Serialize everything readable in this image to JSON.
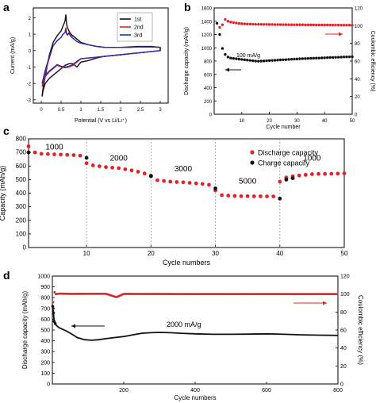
{
  "panels": {
    "a": {
      "letter": "a"
    },
    "b": {
      "letter": "b"
    },
    "c": {
      "letter": "c"
    },
    "d": {
      "letter": "d"
    }
  },
  "colors": {
    "black": "#111111",
    "red": "#e0252a",
    "blue": "#2b2fa8",
    "grid": "#9a9a9a"
  },
  "chart_data": [
    {
      "id": "a",
      "type": "line",
      "xlabel": "Potential (V vs Li/Li⁺)",
      "ylabel": "Current (mA/g)",
      "xlim": [
        -0.2,
        3.2
      ],
      "ylim": [
        -3.2,
        2.6
      ],
      "xticks": [
        0.0,
        0.5,
        1.0,
        1.5,
        2.0,
        2.5,
        3.0
      ],
      "yticks": [
        -3,
        -2,
        -1,
        0,
        1,
        2
      ],
      "legend": {
        "position": "top-right",
        "entries": [
          "1st",
          "2nd",
          "3rd"
        ]
      },
      "series": [
        {
          "name": "1st",
          "color": "#111111",
          "x": [
            0.02,
            0.05,
            0.1,
            0.2,
            0.3,
            0.4,
            0.5,
            0.55,
            0.6,
            0.62,
            0.64,
            0.66,
            0.7,
            0.75,
            0.8,
            0.9,
            1.0,
            1.2,
            1.4,
            1.6,
            1.8,
            2.0,
            2.2,
            2.4,
            2.6,
            2.8,
            3.0,
            3.0,
            2.8,
            2.6,
            2.4,
            2.2,
            2.0,
            1.8,
            1.6,
            1.4,
            1.2,
            1.0,
            0.9,
            0.8,
            0.7,
            0.6,
            0.5,
            0.4,
            0.3,
            0.2,
            0.1,
            0.05,
            0.02
          ],
          "y": [
            -2.8,
            -2.2,
            -1.6,
            -0.3,
            0.5,
            0.9,
            1.2,
            1.5,
            1.8,
            2.2,
            1.6,
            1.4,
            1.2,
            1.0,
            0.9,
            0.7,
            0.5,
            0.35,
            0.25,
            0.2,
            0.2,
            0.2,
            0.22,
            0.25,
            0.25,
            0.25,
            0.2,
            0.0,
            -0.05,
            -0.1,
            -0.15,
            -0.2,
            -0.25,
            -0.3,
            -0.35,
            -0.45,
            -0.6,
            -0.7,
            -1.0,
            -0.8,
            -0.8,
            -0.9,
            -1.1,
            -1.3,
            -1.5,
            -1.7,
            -2.0,
            -2.4,
            -2.8
          ]
        },
        {
          "name": "2nd",
          "color": "#e0252a",
          "x": [
            0.02,
            0.05,
            0.1,
            0.2,
            0.3,
            0.4,
            0.5,
            0.55,
            0.6,
            0.62,
            0.64,
            0.66,
            0.7,
            0.75,
            0.8,
            0.9,
            1.0,
            1.2,
            1.4,
            1.6,
            1.8,
            2.0,
            2.2,
            2.4,
            2.6,
            2.8,
            3.0,
            3.0,
            2.8,
            2.6,
            2.4,
            2.2,
            2.0,
            1.8,
            1.6,
            1.4,
            1.2,
            1.0,
            0.9,
            0.8,
            0.7,
            0.6,
            0.5,
            0.4,
            0.3,
            0.2,
            0.1,
            0.05,
            0.02
          ],
          "y": [
            -2.2,
            -1.8,
            -1.3,
            -0.5,
            0.3,
            0.6,
            0.8,
            1.0,
            1.1,
            1.4,
            1.05,
            0.95,
            1.1,
            0.9,
            0.75,
            0.55,
            0.45,
            0.35,
            0.25,
            0.2,
            0.2,
            0.2,
            0.2,
            0.22,
            0.22,
            0.22,
            0.2,
            0.0,
            -0.05,
            -0.1,
            -0.15,
            -0.2,
            -0.25,
            -0.3,
            -0.35,
            -0.4,
            -0.45,
            -0.5,
            -0.7,
            -0.9,
            -1.0,
            -1.05,
            -1.0,
            -0.9,
            -1.1,
            -1.3,
            -1.6,
            -1.9,
            -2.2
          ]
        },
        {
          "name": "3rd",
          "color": "#2b2fa8",
          "x": [
            0.02,
            0.05,
            0.1,
            0.2,
            0.3,
            0.4,
            0.5,
            0.55,
            0.6,
            0.62,
            0.64,
            0.66,
            0.7,
            0.75,
            0.8,
            0.9,
            1.0,
            1.2,
            1.4,
            1.6,
            1.8,
            2.0,
            2.2,
            2.4,
            2.6,
            2.8,
            3.0,
            3.0,
            2.8,
            2.6,
            2.4,
            2.2,
            2.0,
            1.8,
            1.6,
            1.4,
            1.2,
            1.0,
            0.9,
            0.8,
            0.7,
            0.6,
            0.5,
            0.4,
            0.3,
            0.2,
            0.1,
            0.05,
            0.02
          ],
          "y": [
            -2.0,
            -1.7,
            -1.2,
            -0.4,
            0.3,
            0.6,
            0.8,
            1.0,
            1.1,
            1.3,
            1.0,
            0.95,
            1.05,
            0.85,
            0.75,
            0.55,
            0.45,
            0.35,
            0.25,
            0.2,
            0.2,
            0.2,
            0.2,
            0.22,
            0.22,
            0.22,
            0.2,
            0.0,
            -0.05,
            -0.1,
            -0.15,
            -0.2,
            -0.25,
            -0.3,
            -0.35,
            -0.4,
            -0.45,
            -0.5,
            -0.65,
            -0.85,
            -0.95,
            -1.0,
            -0.95,
            -0.85,
            -1.05,
            -1.25,
            -1.5,
            -1.8,
            -2.0
          ]
        }
      ]
    },
    {
      "id": "b",
      "type": "scatter",
      "xlabel": "Cycle number",
      "ylabel": "Discharge capacity (mAh/g)",
      "ylabel_right": "Coulombic efficiency (%)",
      "xlim": [
        0,
        50
      ],
      "ylim": [
        0,
        1600
      ],
      "ylim_right": [
        0,
        120
      ],
      "xticks": [
        10,
        20,
        30,
        40,
        50
      ],
      "yticks": [
        0,
        200,
        400,
        600,
        800,
        1000,
        1200,
        1400,
        1600
      ],
      "yticks_right": [
        0,
        20,
        40,
        60,
        80,
        100,
        120
      ],
      "annotation": "100 mA/g",
      "series": [
        {
          "axis": "left",
          "color": "#111111",
          "x": [
            1,
            2,
            3,
            4,
            5,
            6,
            7,
            8,
            9,
            10,
            11,
            12,
            13,
            14,
            15,
            16,
            17,
            18,
            19,
            20,
            21,
            22,
            23,
            24,
            25,
            26,
            27,
            28,
            29,
            30,
            31,
            32,
            33,
            34,
            35,
            36,
            37,
            38,
            39,
            40,
            41,
            42,
            43,
            44,
            45,
            46,
            47,
            48,
            49,
            50
          ],
          "y": [
            1370,
            1200,
            990,
            900,
            860,
            845,
            840,
            835,
            830,
            825,
            820,
            815,
            810,
            805,
            800,
            798,
            800,
            802,
            805,
            808,
            810,
            812,
            815,
            818,
            820,
            822,
            825,
            828,
            830,
            832,
            835,
            837,
            838,
            840,
            842,
            844,
            845,
            846,
            848,
            850,
            852,
            854,
            855,
            856,
            858,
            860,
            862,
            863,
            864,
            865
          ]
        },
        {
          "axis": "right",
          "color": "#e0252a",
          "x": [
            2,
            3,
            4,
            5,
            6,
            7,
            8,
            9,
            10,
            11,
            12,
            13,
            14,
            15,
            16,
            17,
            18,
            19,
            20,
            21,
            22,
            23,
            24,
            25,
            26,
            27,
            28,
            29,
            30,
            31,
            32,
            33,
            34,
            35,
            36,
            37,
            38,
            39,
            40,
            41,
            42,
            43,
            44,
            45,
            46,
            47,
            48,
            49,
            50
          ],
          "y": [
            98,
            101,
            107,
            105,
            104,
            103.5,
            103,
            102.5,
            102.2,
            102,
            101.8,
            101.8,
            101.6,
            101.5,
            101.5,
            101.5,
            101.4,
            101.4,
            101.3,
            101.3,
            101.2,
            101.2,
            101.2,
            101.1,
            101.1,
            101,
            101,
            101,
            101,
            101,
            101,
            100.9,
            100.9,
            100.9,
            100.9,
            100.8,
            100.8,
            100.8,
            100.8,
            100.8,
            100.7,
            100.7,
            100.7,
            100.7,
            100.6,
            100.6,
            100.6,
            100.6,
            100.6
          ]
        }
      ]
    },
    {
      "id": "c",
      "type": "scatter",
      "xlabel": "Cycle numbers",
      "ylabel": "Capacity (mAh/g)",
      "xlim": [
        1,
        50
      ],
      "ylim": [
        0,
        800
      ],
      "xticks": [
        10,
        20,
        30,
        40,
        50
      ],
      "yticks": [
        0,
        100,
        200,
        300,
        400,
        500,
        600,
        700,
        800
      ],
      "legend": {
        "position": "top-right",
        "entries": [
          "Discharge capacity",
          "Charge capacity"
        ]
      },
      "annotations": [
        {
          "text": "1000",
          "x": 5,
          "y": 720
        },
        {
          "text": "2000",
          "x": 15,
          "y": 640
        },
        {
          "text": "3000",
          "x": 25,
          "y": 560
        },
        {
          "text": "5000",
          "x": 35,
          "y": 470
        },
        {
          "text": "1000",
          "x": 45,
          "y": 640
        }
      ],
      "dividers": [
        10,
        20,
        30,
        40
      ],
      "series": [
        {
          "name": "Discharge capacity",
          "color": "#e0252a",
          "x": [
            1,
            2,
            3,
            4,
            5,
            6,
            7,
            8,
            9,
            10,
            11,
            12,
            13,
            14,
            15,
            16,
            17,
            18,
            19,
            20,
            21,
            22,
            23,
            24,
            25,
            26,
            27,
            28,
            29,
            30,
            31,
            32,
            33,
            34,
            35,
            36,
            37,
            38,
            39,
            40,
            41,
            42,
            43,
            44,
            45,
            46,
            47,
            48,
            49,
            50
          ],
          "y": [
            745,
            700,
            690,
            688,
            686,
            684,
            682,
            680,
            676,
            620,
            605,
            598,
            592,
            588,
            584,
            576,
            568,
            558,
            545,
            530,
            495,
            490,
            485,
            482,
            480,
            476,
            472,
            468,
            462,
            420,
            385,
            382,
            380,
            378,
            378,
            377,
            377,
            376,
            376,
            485,
            515,
            525,
            530,
            535,
            540,
            542,
            542,
            543,
            544,
            546
          ]
        },
        {
          "name": "Charge capacity",
          "color": "#111111",
          "x": [
            1,
            10,
            20,
            30,
            40,
            41,
            42
          ],
          "y": [
            700,
            660,
            525,
            435,
            360,
            500,
            510
          ]
        }
      ]
    },
    {
      "id": "d",
      "type": "scatter",
      "xlabel": "Cycle numbers",
      "ylabel": "Discharge capacity (mAh/g)",
      "ylabel_right": "Coulombic efficiency (%)",
      "xlim": [
        0,
        800
      ],
      "ylim": [
        0,
        1000
      ],
      "ylim_right": [
        0,
        120
      ],
      "xticks": [
        200,
        400,
        600,
        800
      ],
      "yticks": [
        0,
        100,
        200,
        300,
        400,
        500,
        600,
        700,
        800,
        900,
        1000
      ],
      "yticks_right": [
        0,
        20,
        40,
        60,
        80,
        100,
        120
      ],
      "annotation": "2000 mA/g",
      "series": [
        {
          "axis": "left",
          "color": "#111111",
          "x": [
            1,
            3,
            5,
            8,
            12,
            20,
            30,
            40,
            55,
            70,
            90,
            110,
            130,
            150,
            175,
            200,
            225,
            250,
            275,
            300,
            330,
            360,
            400,
            450,
            500,
            550,
            600,
            650,
            700,
            750,
            800
          ],
          "y": [
            720,
            660,
            580,
            560,
            540,
            520,
            505,
            490,
            460,
            430,
            410,
            405,
            410,
            420,
            430,
            440,
            455,
            470,
            475,
            478,
            475,
            470,
            465,
            460,
            460,
            462,
            465,
            460,
            455,
            452,
            450
          ]
        },
        {
          "axis": "right",
          "color": "#e0252a",
          "x": [
            2,
            4,
            6,
            10,
            20,
            40,
            60,
            100,
            150,
            180,
            200,
            250,
            300,
            350,
            400,
            450,
            500,
            550,
            600,
            650,
            700,
            750,
            800
          ],
          "y": [
            91,
            84,
            102,
            100,
            100.5,
            100.3,
            100.2,
            100.3,
            100.3,
            96.5,
            100.2,
            100.1,
            100.1,
            100,
            100,
            100,
            100,
            100,
            100,
            100,
            100,
            100,
            100
          ]
        }
      ]
    }
  ]
}
